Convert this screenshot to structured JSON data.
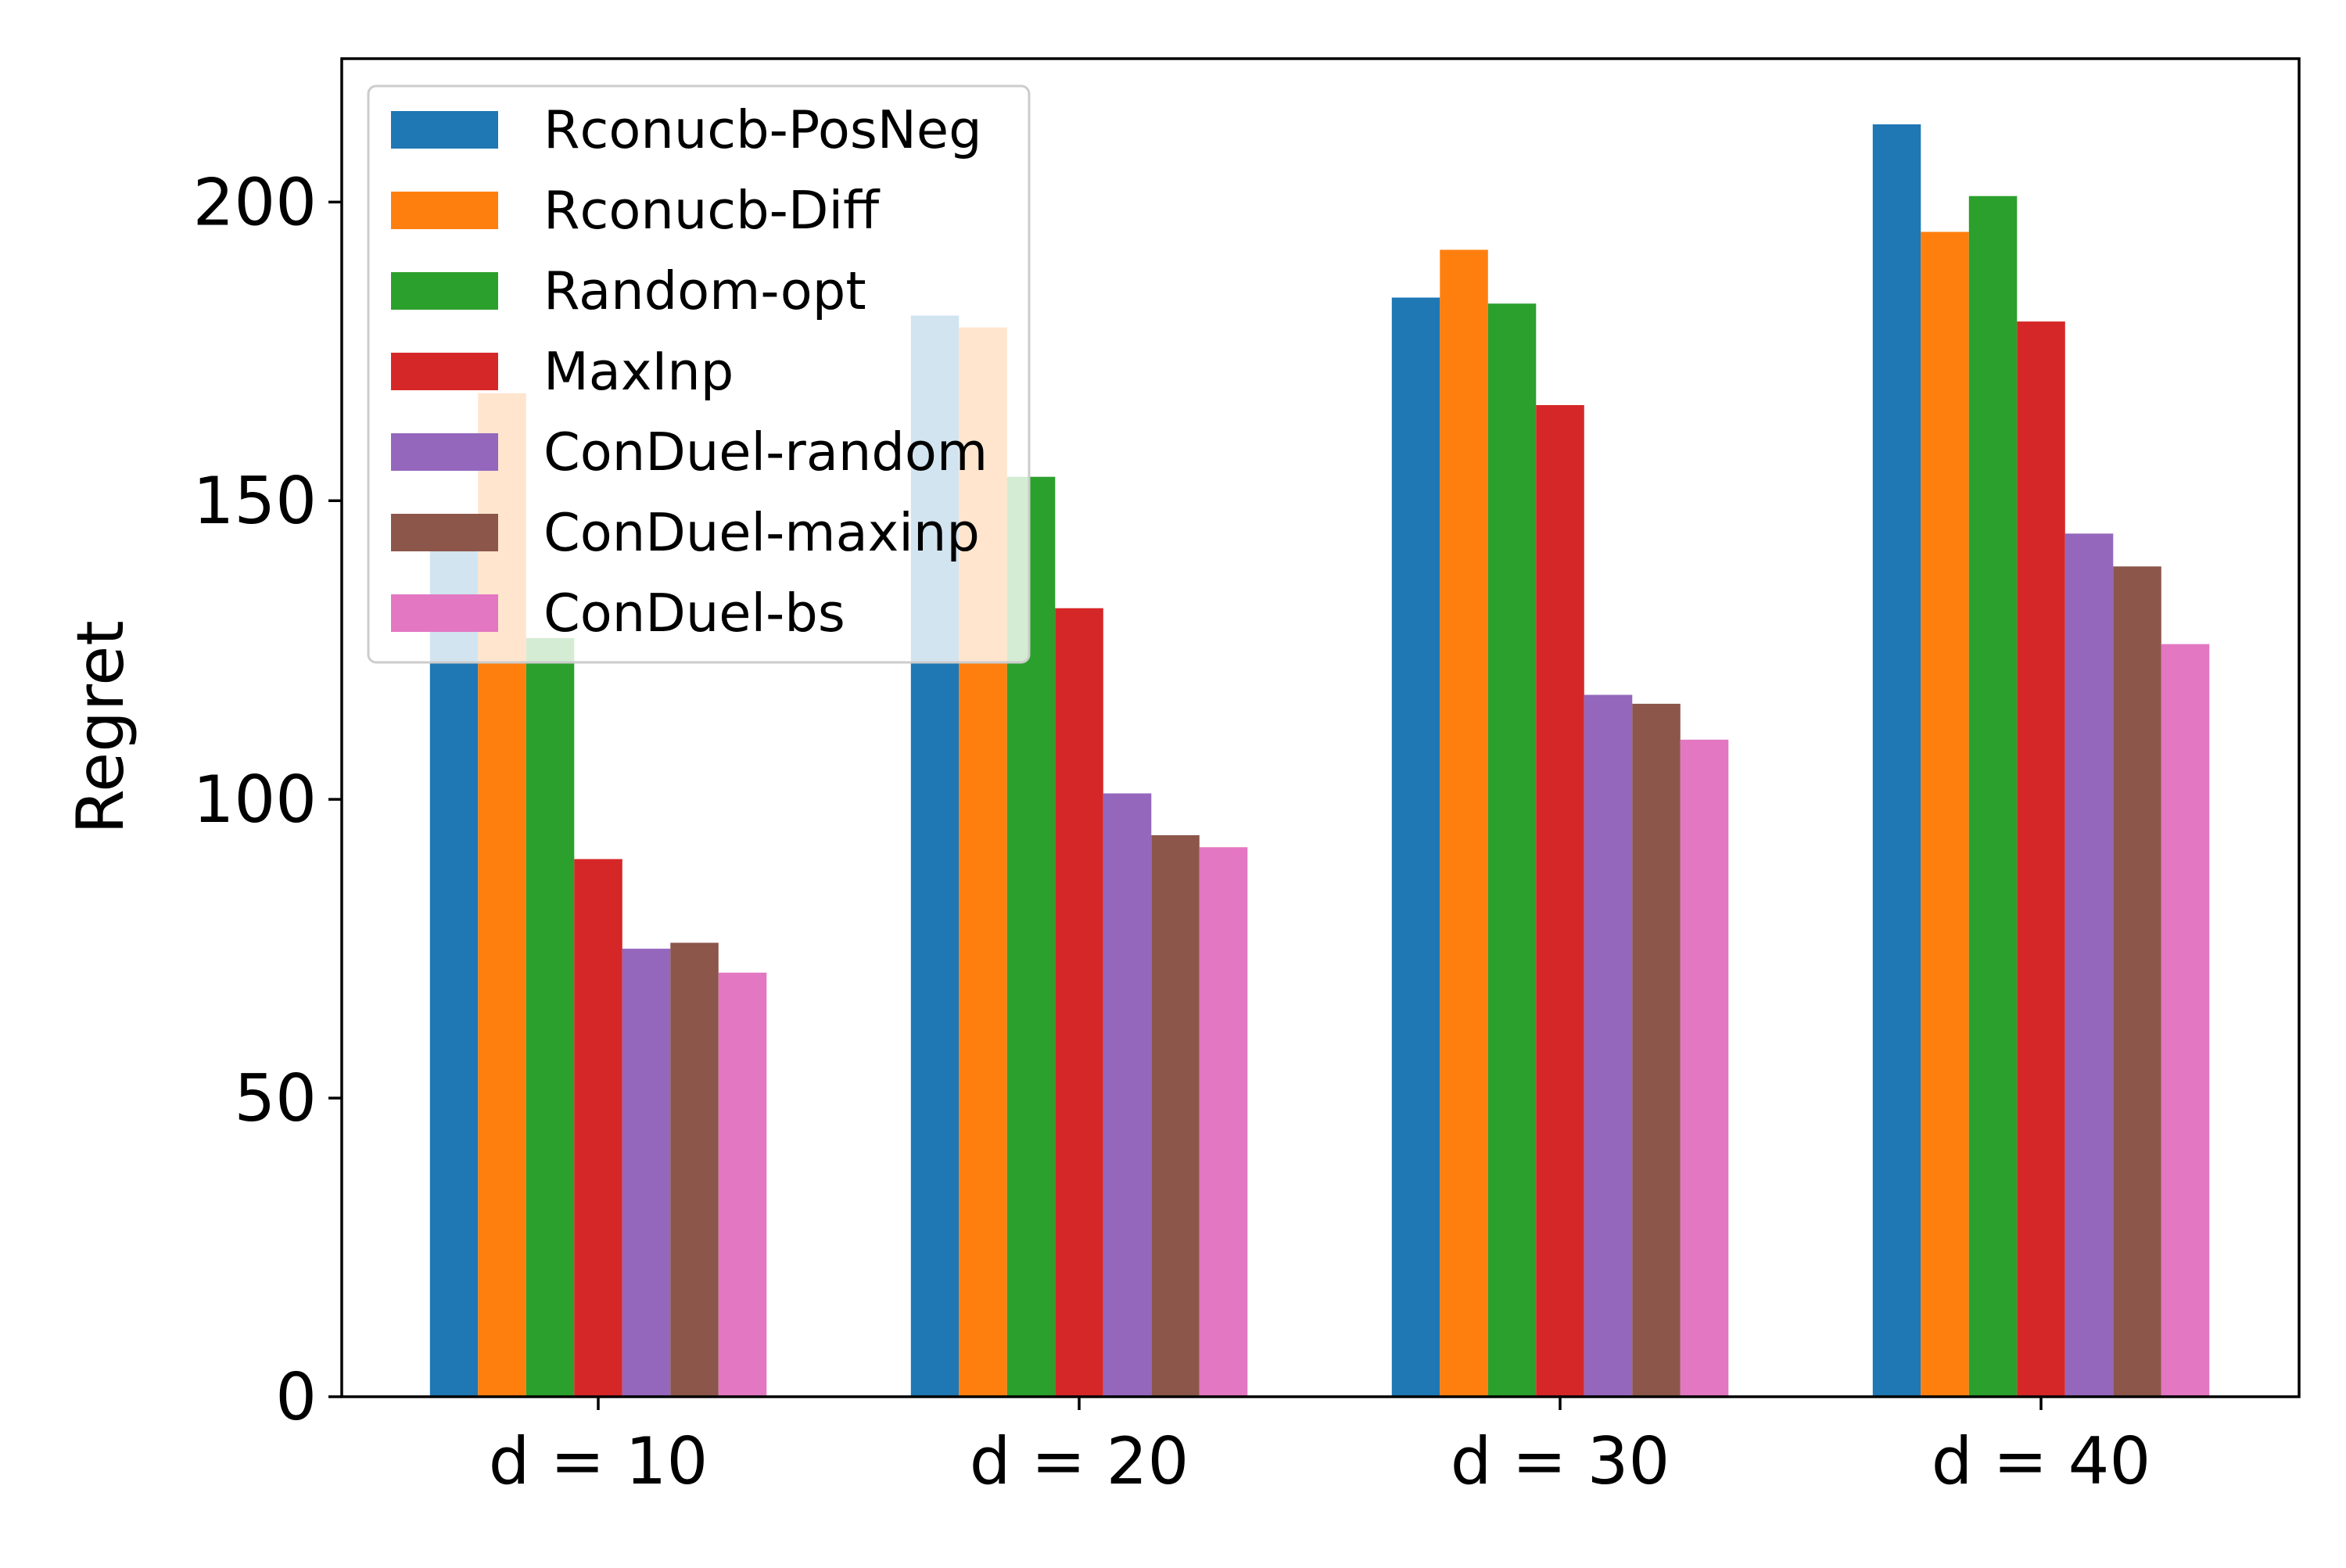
{
  "chart_data": {
    "type": "bar",
    "title": "",
    "xlabel": "",
    "ylabel": "Regret",
    "categories": [
      "d = 10",
      "d = 20",
      "d = 30",
      "d = 40"
    ],
    "ylim": [
      0,
      224
    ],
    "yticks": [
      0,
      50,
      100,
      150,
      200
    ],
    "grid": false,
    "legend_position": "top-left",
    "series": [
      {
        "name": "Rconucb-PosNeg",
        "color": "#1f77b4",
        "values": [
          142,
          181,
          184,
          213
        ]
      },
      {
        "name": "Rconucb-Diff",
        "color": "#ff7f0e",
        "values": [
          168,
          179,
          192,
          195
        ]
      },
      {
        "name": "Random-opt",
        "color": "#2ca02c",
        "values": [
          127,
          154,
          183,
          201
        ]
      },
      {
        "name": "MaxInp",
        "color": "#d62728",
        "values": [
          90,
          132,
          166,
          180
        ]
      },
      {
        "name": "ConDuel-random",
        "color": "#9467bd",
        "values": [
          75,
          101,
          117.5,
          144.5
        ]
      },
      {
        "name": "ConDuel-maxinp",
        "color": "#8c564b",
        "values": [
          76,
          94,
          116,
          139
        ]
      },
      {
        "name": "ConDuel-bs",
        "color": "#e377c2",
        "values": [
          71,
          92,
          110,
          126
        ]
      }
    ]
  }
}
